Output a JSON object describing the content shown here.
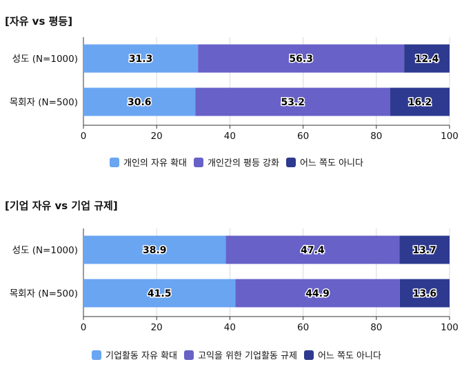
{
  "chart_data": [
    {
      "type": "bar",
      "orientation": "horizontal",
      "stacked": true,
      "title": "[자유 vs 평등]",
      "categories": [
        "성도 (N=1000)",
        "목회자 (N=500)"
      ],
      "series": [
        {
          "name": "개인의 자유 확대",
          "values": [
            31.3,
            30.6
          ],
          "color": "#6aa5f2"
        },
        {
          "name": "개인간의 평등 강화",
          "values": [
            56.3,
            53.2
          ],
          "color": "#6861c8"
        },
        {
          "name": "어느 쪽도 아니다",
          "values": [
            12.4,
            16.2
          ],
          "color": "#2e3a8f"
        }
      ],
      "xlim": [
        0,
        100
      ],
      "xticks": [
        0,
        20,
        40,
        60,
        80,
        100
      ],
      "grid": true,
      "legend": "bottom-center"
    },
    {
      "type": "bar",
      "orientation": "horizontal",
      "stacked": true,
      "title": "[기업 자유 vs 기업 규제]",
      "categories": [
        "성도 (N=1000)",
        "목회자 (N=500)"
      ],
      "series": [
        {
          "name": "기업활동 자유 확대",
          "values": [
            38.9,
            41.5
          ],
          "color": "#6aa5f2"
        },
        {
          "name": "고익을 위한 기업활동 규제",
          "values": [
            47.4,
            44.9
          ],
          "color": "#6861c8"
        },
        {
          "name": "어느 쪽도 아니다",
          "values": [
            13.7,
            13.6
          ],
          "color": "#2e3a8f"
        }
      ],
      "xlim": [
        0,
        100
      ],
      "xticks": [
        0,
        20,
        40,
        60,
        80,
        100
      ],
      "grid": true,
      "legend": "bottom-center"
    }
  ]
}
